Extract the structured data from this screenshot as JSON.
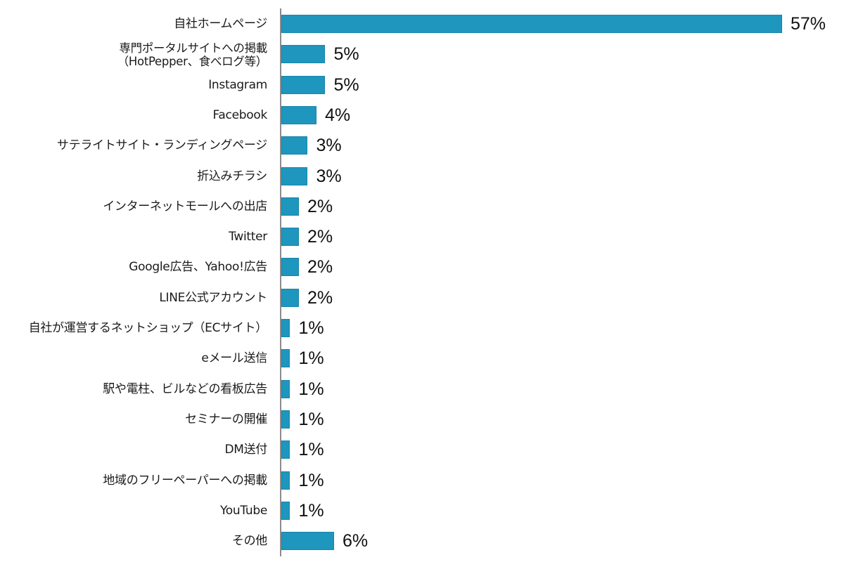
{
  "chart_data": {
    "type": "bar",
    "orientation": "horizontal",
    "title": "",
    "xlabel": "",
    "ylabel": "",
    "xlim": [
      0,
      57
    ],
    "grid": false,
    "legend": null,
    "bar_color": "#1e96bd",
    "axis_color": "#8c8c8c",
    "value_format": "{v}%",
    "categories": [
      "自社ホームページ",
      "専門ポータルサイトへの掲載\n（HotPepper、食べログ等）",
      "Instagram",
      "Facebook",
      "サテライトサイト・ランディングページ",
      "折込みチラシ",
      "インターネットモールへの出店",
      "Twitter",
      "Google広告、Yahoo!広告",
      "LINE公式アカウント",
      "自社が運営するネットショップ（ECサイト）",
      "eメール送信",
      "駅や電柱、ビルなどの看板広告",
      "セミナーの開催",
      "DM送付",
      "地域のフリーペーパーへの掲載",
      "YouTube",
      "その他"
    ],
    "values": [
      57,
      5,
      5,
      4,
      3,
      3,
      2,
      2,
      2,
      2,
      1,
      1,
      1,
      1,
      1,
      1,
      1,
      6
    ],
    "value_labels": [
      "57%",
      "5%",
      "5%",
      "4%",
      "3%",
      "3%",
      "2%",
      "2%",
      "2%",
      "2%",
      "1%",
      "1%",
      "1%",
      "1%",
      "1%",
      "1%",
      "1%",
      "6%"
    ]
  }
}
